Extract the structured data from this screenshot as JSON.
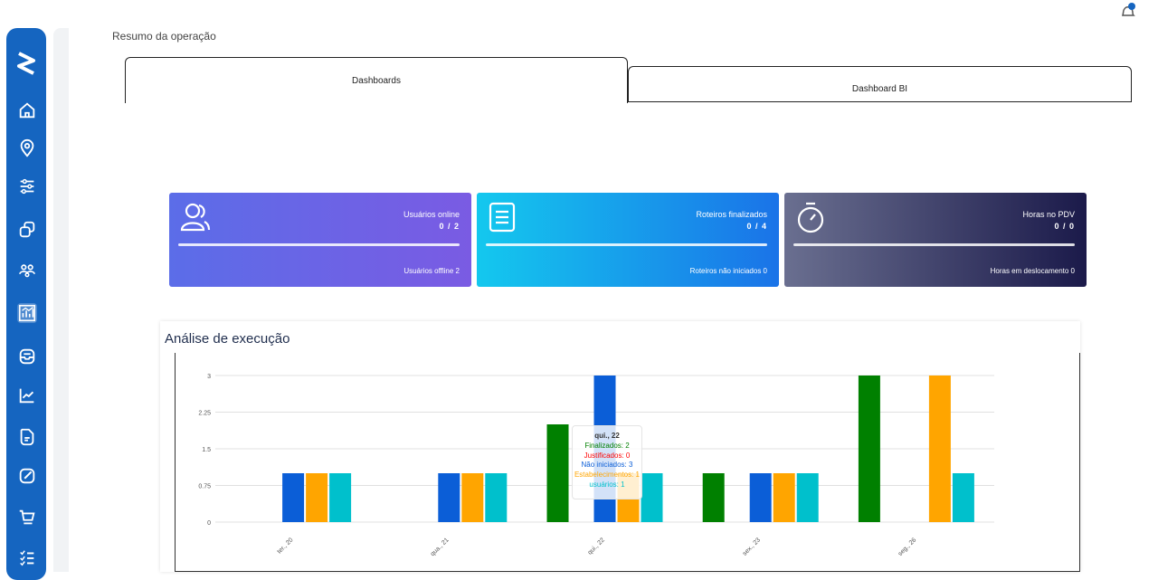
{
  "page_title": "Resumo da operação",
  "tabs": [
    {
      "label": "Dashboards",
      "active": true
    },
    {
      "label": "Dashboard BI",
      "active": false
    }
  ],
  "sidebar": {
    "logo_icon": "logo-s-icon",
    "items": [
      {
        "icon": "home-icon"
      },
      {
        "icon": "location-pin-icon"
      },
      {
        "icon": "sliders-icon"
      },
      {
        "icon": "layers-icon"
      },
      {
        "icon": "users-group-icon"
      },
      {
        "icon": "analytics-chart-icon",
        "active": true
      },
      {
        "icon": "inbox-icon"
      },
      {
        "icon": "trending-up-icon"
      },
      {
        "icon": "document-icon"
      },
      {
        "icon": "edit-icon"
      },
      {
        "icon": "cart-icon"
      },
      {
        "icon": "checklist-icon"
      }
    ]
  },
  "cards": [
    {
      "icon": "users-icon",
      "label": "Usuários online",
      "value": "0 / 2",
      "footer": "Usuários offline 2",
      "progress": 0
    },
    {
      "icon": "list-document-icon",
      "label": "Roteiros finalizados",
      "value": "0 / 4",
      "footer": "Roteiros não iniciados 0",
      "progress": 0
    },
    {
      "icon": "stopwatch-icon",
      "label": "Horas no PDV",
      "value": "0 / 0",
      "footer": "Horas em deslocamento 0",
      "progress": 0
    }
  ],
  "chart_title": "Análise de execução",
  "chart_data": {
    "type": "bar",
    "categories": [
      "ter., 20",
      "qua., 21",
      "qui., 22",
      "sex., 23",
      "seg., 26"
    ],
    "series": [
      {
        "name": "Finalizados",
        "color": "#008000",
        "values": [
          0,
          0,
          2,
          1,
          3
        ]
      },
      {
        "name": "Justificados",
        "color": "#ff0000",
        "values": [
          0,
          0,
          0,
          0,
          0
        ]
      },
      {
        "name": "Não iniciados",
        "color": "#0b5ed7",
        "values": [
          1,
          1,
          3,
          1,
          0
        ]
      },
      {
        "name": "Estabelecimentos",
        "color": "#ffa500",
        "values": [
          1,
          1,
          1,
          1,
          3
        ]
      },
      {
        "name": "usuários",
        "color": "#00c0cc",
        "values": [
          1,
          1,
          1,
          1,
          1
        ]
      }
    ],
    "yticks": [
      "0",
      "0.75",
      "1.5",
      "2.25",
      "3"
    ],
    "ylim": [
      0,
      3
    ],
    "grid": true
  },
  "tooltip": {
    "title": "qui., 22",
    "lines": [
      {
        "text": "Finalizados: 2",
        "color": "#008000"
      },
      {
        "text": "Justificados: 0",
        "color": "#ff0000"
      },
      {
        "text": "Não iniciados: 3",
        "color": "#0b5ed7"
      },
      {
        "text": "Estabelecimentos: 1",
        "color": "#ffa500"
      },
      {
        "text": "usuários: 1",
        "color": "#00c0cc"
      }
    ]
  }
}
